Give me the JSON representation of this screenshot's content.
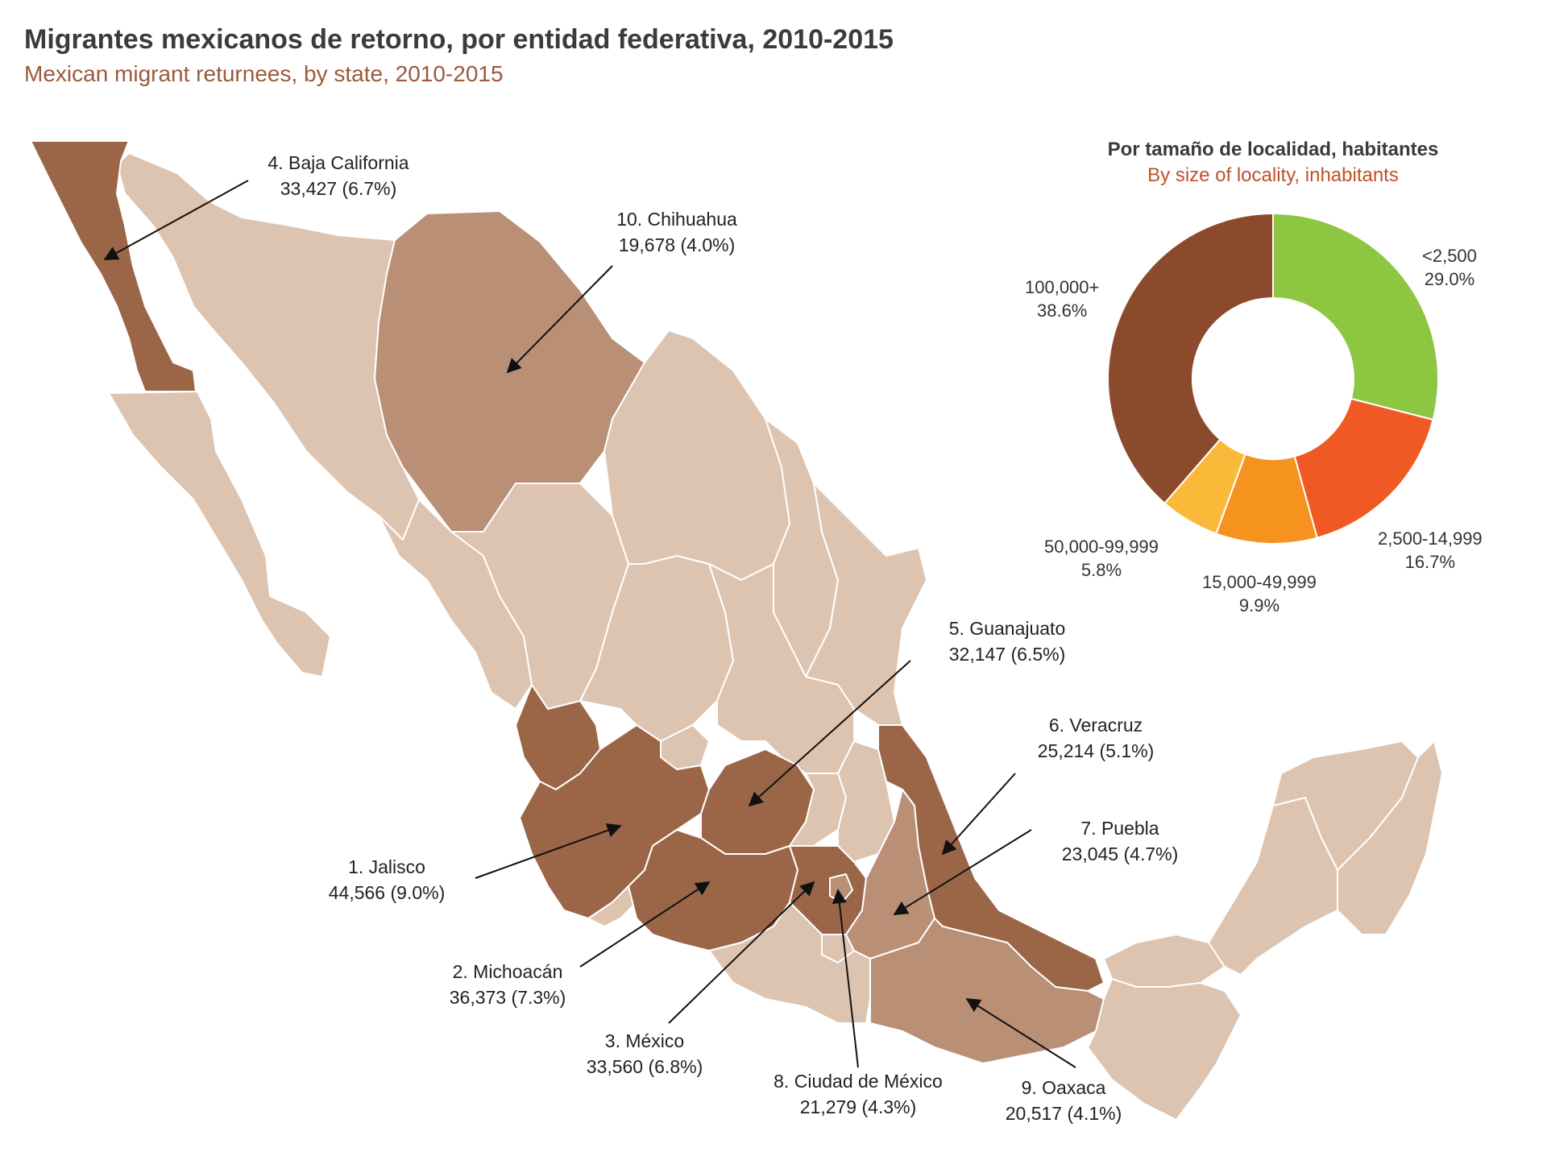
{
  "header": {
    "title": "Migrantes mexicanos de retorno, por entidad federativa, 2010-2015",
    "subtitle": "Mexican migrant returnees, by state, 2010-2015"
  },
  "colors": {
    "top_state": "#9b6647",
    "mid_state": "#b98f76",
    "other_state": "#dcc4b1",
    "border": "#ffffff",
    "arrow": "#111111"
  },
  "states": [
    {
      "rank_label": "1. Jalisco",
      "value_label": "44,566 (9.0%)",
      "value": 44566,
      "pct": 9.0
    },
    {
      "rank_label": "2. Michoacán",
      "value_label": "36,373 (7.3%)",
      "value": 36373,
      "pct": 7.3
    },
    {
      "rank_label": "3. México",
      "value_label": "33,560 (6.8%)",
      "value": 33560,
      "pct": 6.8
    },
    {
      "rank_label": "4. Baja California",
      "value_label": "33,427 (6.7%)",
      "value": 33427,
      "pct": 6.7
    },
    {
      "rank_label": "5. Guanajuato",
      "value_label": "32,147 (6.5%)",
      "value": 32147,
      "pct": 6.5
    },
    {
      "rank_label": "6. Veracruz",
      "value_label": "25,214 (5.1%)",
      "value": 25214,
      "pct": 5.1
    },
    {
      "rank_label": "7. Puebla",
      "value_label": "23,045 (4.7%)",
      "value": 23045,
      "pct": 4.7
    },
    {
      "rank_label": "8. Ciudad de México",
      "value_label": "21,279 (4.3%)",
      "value": 21279,
      "pct": 4.3
    },
    {
      "rank_label": "9. Oaxaca",
      "value_label": "20,517 (4.1%)",
      "value": 20517,
      "pct": 4.1
    },
    {
      "rank_label": "10. Chihuahua",
      "value_label": "19,678 (4.0%)",
      "value": 19678,
      "pct": 4.0
    }
  ],
  "donut": {
    "title_es": "Por tamaño de localidad, habitantes",
    "title_en": "By size of locality, inhabitants",
    "slices": [
      {
        "label": "<2,500",
        "pct_label": "29.0%",
        "value": 29.0,
        "color": "#8dc641"
      },
      {
        "label": "2,500-14,999",
        "pct_label": "16.7%",
        "value": 16.7,
        "color": "#ef5a24"
      },
      {
        "label": "15,000-49,999",
        "pct_label": "9.9%",
        "value": 9.9,
        "color": "#f6921e"
      },
      {
        "label": "50,000-99,999",
        "pct_label": "5.8%",
        "value": 5.8,
        "color": "#fbb93a"
      },
      {
        "label": "100,000+",
        "pct_label": "38.6%",
        "value": 38.6,
        "color": "#8b4a2b"
      }
    ]
  }
}
